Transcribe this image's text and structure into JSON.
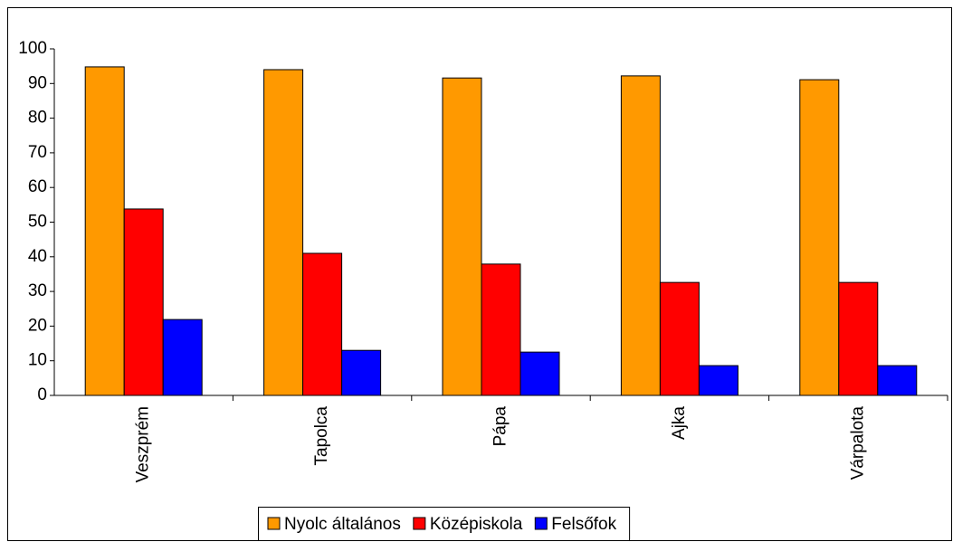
{
  "chart_data": {
    "type": "bar",
    "categories": [
      "Veszprém",
      "Tapolca",
      "Pápa",
      "Ajka",
      "Várpalota"
    ],
    "series": [
      {
        "name": "Nyolc általános",
        "color": "#ff9900",
        "values": [
          94.8,
          94,
          91.6,
          92.2,
          91.1
        ]
      },
      {
        "name": "Középiskola",
        "color": "#ff0000",
        "values": [
          53.8,
          41,
          37.9,
          32.6,
          32.6
        ]
      },
      {
        "name": "Felsőfok",
        "color": "#0000ff",
        "values": [
          21.9,
          13,
          12.5,
          8.6,
          8.6
        ]
      }
    ],
    "ylim": [
      0,
      100
    ],
    "yticks": [
      0,
      10,
      20,
      30,
      40,
      50,
      60,
      70,
      80,
      90,
      100
    ],
    "grid": false,
    "legend": "bottom"
  }
}
